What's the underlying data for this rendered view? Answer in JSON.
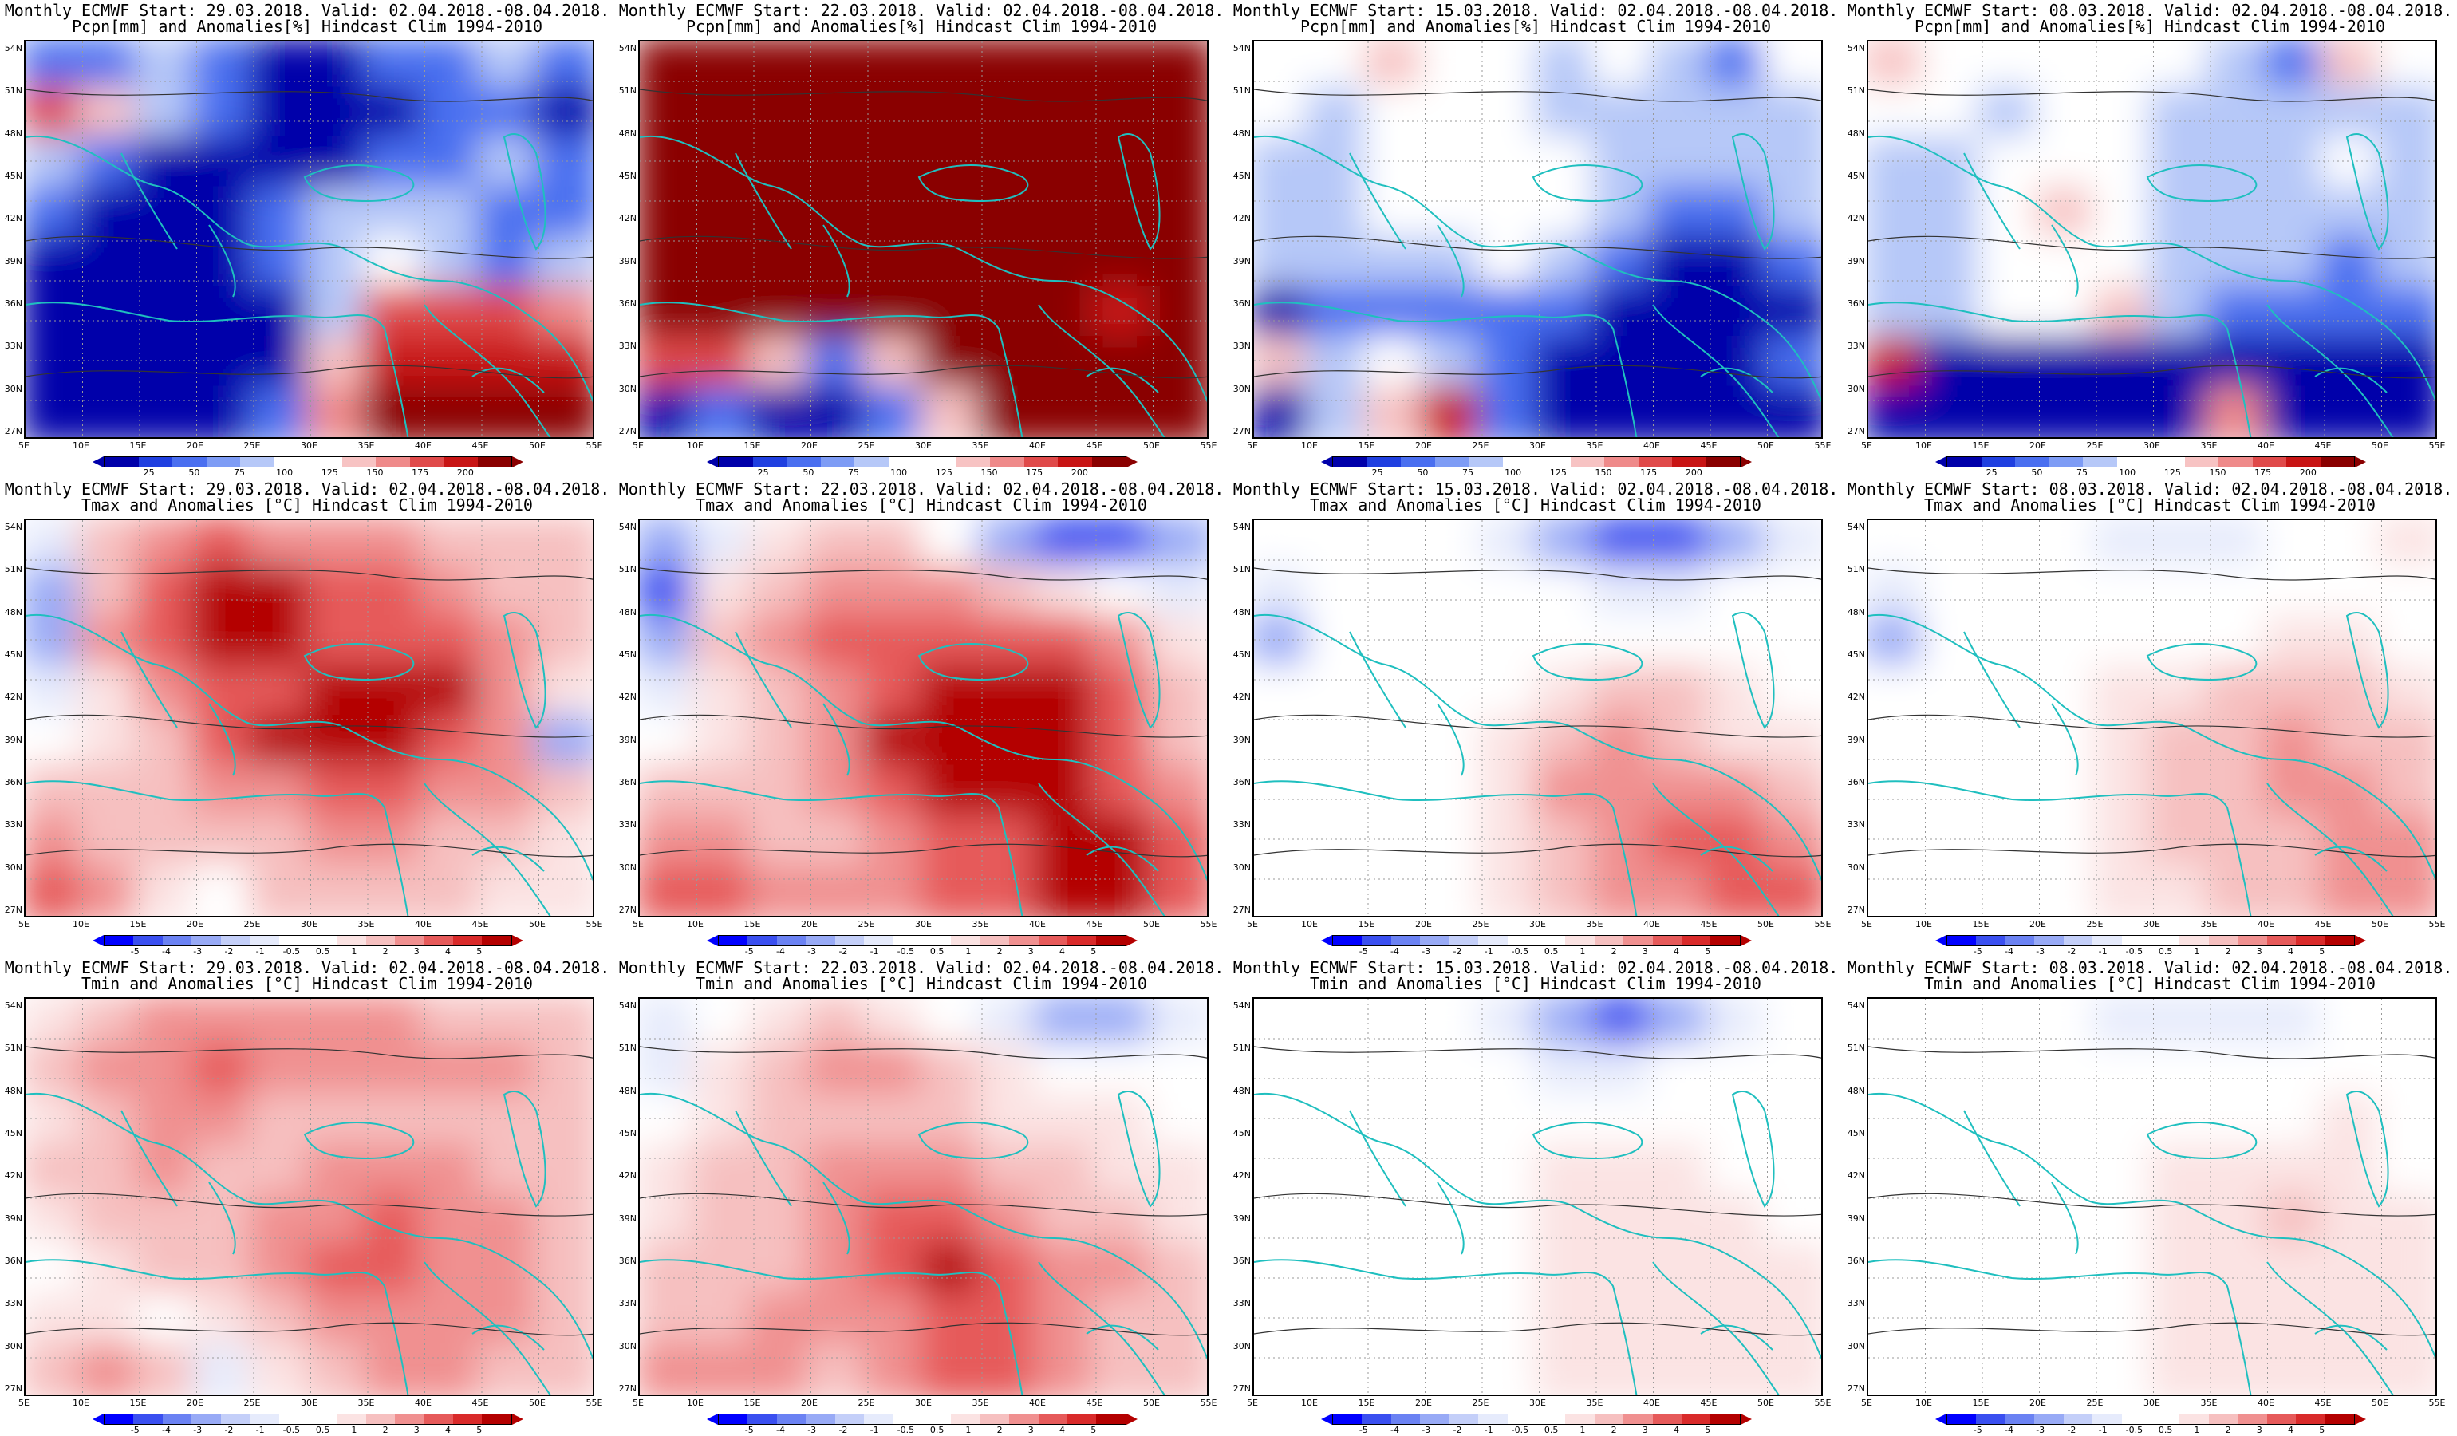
{
  "colors": {
    "precip_scale": [
      "#0000aa",
      "#1f3fe0",
      "#4a6ff0",
      "#7e9cf5",
      "#b6c8f8",
      "#ffffff",
      "#ffffff",
      "#f7c3c3",
      "#ef8a8a",
      "#e04a4a",
      "#c81414",
      "#8a0000"
    ],
    "temp_scale": [
      "#0000ff",
      "#3a4ff0",
      "#6b82f3",
      "#98aaf6",
      "#c4cff9",
      "#e6ebfc",
      "#ffffff",
      "#ffffff",
      "#fbe3e3",
      "#f6c0c0",
      "#f09090",
      "#e65a5a",
      "#d92a2a",
      "#b40000"
    ],
    "coast": "#1fbfbf",
    "contour": "#333333"
  },
  "rows": [
    {
      "variable_line": "Pcpn[mm] and Anomalies[%] Hindcast Clim 1994-2010",
      "colorbar_labels": [
        "25",
        "50",
        "75",
        "100",
        "125",
        "150",
        "175",
        "200"
      ],
      "scale": "precip"
    },
    {
      "variable_line": "Tmax and Anomalies [°C] Hindcast Clim 1994-2010",
      "colorbar_labels": [
        "-5",
        "-4",
        "-3",
        "-2",
        "-1",
        "-0.5",
        "0.5",
        "1",
        "2",
        "3",
        "4",
        "5"
      ],
      "scale": "temp"
    },
    {
      "variable_line": "Tmin and Anomalies [°C] Hindcast Clim 1994-2010",
      "colorbar_labels": [
        "-5",
        "-4",
        "-3",
        "-2",
        "-1",
        "-0.5",
        "0.5",
        "1",
        "2",
        "3",
        "4",
        "5"
      ],
      "scale": "temp"
    }
  ],
  "columns": [
    {
      "header": "Monthly ECMWF Start: 29.03.2018. Valid: 02.04.2018.-08.04.2018."
    },
    {
      "header": "Monthly ECMWF Start: 22.03.2018. Valid: 02.04.2018.-08.04.2018."
    },
    {
      "header": "Monthly ECMWF Start: 15.03.2018. Valid: 02.04.2018.-08.04.2018."
    },
    {
      "header": "Monthly ECMWF Start: 08.03.2018. Valid: 02.04.2018.-08.04.2018."
    }
  ],
  "lat_labels": [
    "54N",
    "51N",
    "48N",
    "45N",
    "42N",
    "39N",
    "36N",
    "33N",
    "30N",
    "27N"
  ],
  "lon_labels": [
    "5E",
    "10E",
    "15E",
    "20E",
    "25E",
    "30E",
    "35E",
    "40E",
    "45E",
    "50E",
    "55E"
  ],
  "panels": [
    {
      "row": 0,
      "col": 0,
      "pattern": [
        [
          -2,
          -2,
          -1,
          -2,
          -3,
          -3,
          -2,
          -2,
          -1,
          -2
        ],
        [
          3,
          1,
          -1,
          -2,
          -3,
          -3,
          -3,
          -2,
          -2,
          -3
        ],
        [
          -1,
          -2,
          -3,
          -3,
          -3,
          -3,
          -2,
          -2,
          -1,
          -2
        ],
        [
          -2,
          -3,
          -3,
          -3,
          -2,
          -1,
          -1,
          -1,
          -2,
          -2
        ],
        [
          -3,
          -3,
          -3,
          -3,
          -2,
          -1,
          0,
          -1,
          -2,
          -1
        ],
        [
          -3,
          -3,
          -3,
          -3,
          -3,
          -1,
          4,
          4,
          4,
          2
        ],
        [
          -3,
          -3,
          -3,
          -3,
          -3,
          1,
          5,
          5,
          5,
          5
        ],
        [
          -3,
          -3,
          -3,
          -3,
          -2,
          2,
          6,
          6,
          6,
          6
        ]
      ]
    },
    {
      "row": 0,
      "col": 1,
      "pattern": [
        [
          6,
          6,
          6,
          6,
          6,
          6,
          6,
          6,
          6,
          6
        ],
        [
          6,
          6,
          6,
          6,
          6,
          6,
          6,
          6,
          6,
          6
        ],
        [
          6,
          6,
          6,
          6,
          6,
          6,
          6,
          6,
          6,
          6
        ],
        [
          6,
          6,
          6,
          6,
          6,
          6,
          6,
          6,
          6,
          6
        ],
        [
          6,
          6,
          6,
          6,
          6,
          6,
          6,
          6,
          6,
          6
        ],
        [
          6,
          6,
          6,
          6,
          6,
          6,
          6,
          6,
          5,
          6
        ],
        [
          3,
          4,
          1,
          -2,
          1,
          6,
          6,
          6,
          6,
          6
        ],
        [
          -3,
          -2,
          -3,
          -3,
          -2,
          1,
          6,
          6,
          6,
          6
        ]
      ]
    },
    {
      "row": 0,
      "col": 2,
      "pattern": [
        [
          0,
          0,
          1,
          0,
          0,
          -1,
          0,
          -1,
          -2,
          0
        ],
        [
          0,
          -1,
          0,
          0,
          0,
          -1,
          -1,
          -1,
          -1,
          -1
        ],
        [
          -1,
          -1,
          0,
          0,
          0,
          0,
          -1,
          -1,
          -1,
          -1
        ],
        [
          -1,
          -1,
          0,
          0,
          0,
          0,
          -1,
          -2,
          -2,
          -1
        ],
        [
          -1,
          -1,
          -1,
          -1,
          0,
          -1,
          -2,
          -3,
          -3,
          -2
        ],
        [
          -3,
          -2,
          -2,
          -2,
          -2,
          -2,
          -3,
          -3,
          -3,
          -3
        ],
        [
          1,
          -1,
          0,
          -1,
          -2,
          -3,
          -3,
          -3,
          -3,
          -2
        ],
        [
          -3,
          -1,
          1,
          5,
          -2,
          -3,
          -3,
          -3,
          -3,
          -3
        ]
      ]
    },
    {
      "row": 0,
      "col": 3,
      "pattern": [
        [
          1,
          0,
          0,
          0,
          0,
          0,
          -1,
          -2,
          1,
          0
        ],
        [
          0,
          0,
          -1,
          0,
          0,
          -1,
          -1,
          -1,
          -1,
          -1
        ],
        [
          -1,
          -1,
          0,
          0,
          0,
          -1,
          -1,
          -1,
          0,
          -1
        ],
        [
          -1,
          -1,
          0,
          1,
          0,
          -1,
          -1,
          -1,
          -1,
          -1
        ],
        [
          -1,
          -1,
          0,
          0,
          0,
          -1,
          -1,
          -1,
          -2,
          -1
        ],
        [
          -1,
          -1,
          0,
          0,
          1,
          -1,
          -2,
          -2,
          -2,
          -2
        ],
        [
          5,
          -3,
          -3,
          -3,
          -3,
          -3,
          -3,
          -3,
          -3,
          -3
        ],
        [
          -3,
          -3,
          -3,
          -3,
          -3,
          -3,
          2,
          -3,
          -3,
          -3
        ]
      ]
    },
    {
      "row": 1,
      "col": 0,
      "pattern": [
        [
          -1,
          2,
          3,
          4,
          3,
          3,
          3,
          2,
          2,
          2
        ],
        [
          -2,
          2,
          4,
          5,
          5,
          4,
          4,
          3,
          2,
          2
        ],
        [
          -2,
          3,
          4,
          5,
          5,
          4,
          4,
          4,
          3,
          2
        ],
        [
          -1,
          1,
          3,
          4,
          4,
          5,
          5,
          5,
          3,
          1
        ],
        [
          0,
          1,
          2,
          4,
          5,
          5,
          5,
          4,
          3,
          -2
        ],
        [
          2,
          2,
          2,
          3,
          3,
          4,
          4,
          3,
          3,
          2
        ],
        [
          3,
          2,
          2,
          2,
          2,
          3,
          3,
          2,
          2,
          1
        ],
        [
          4,
          3,
          1,
          0,
          2,
          2,
          2,
          2,
          1,
          1
        ]
      ]
    },
    {
      "row": 1,
      "col": 1,
      "pattern": [
        [
          -2,
          -1,
          1,
          2,
          2,
          0,
          -2,
          -3,
          -3,
          -2
        ],
        [
          -3,
          1,
          2,
          3,
          3,
          3,
          2,
          1,
          0,
          -1
        ],
        [
          -2,
          2,
          3,
          4,
          4,
          4,
          4,
          4,
          3,
          1
        ],
        [
          -1,
          1,
          2,
          3,
          4,
          5,
          5,
          5,
          4,
          2
        ],
        [
          0,
          1,
          2,
          3,
          5,
          5,
          5,
          5,
          4,
          2
        ],
        [
          2,
          2,
          2,
          3,
          4,
          5,
          5,
          5,
          4,
          3
        ],
        [
          3,
          3,
          2,
          2,
          3,
          4,
          4,
          5,
          5,
          4
        ],
        [
          4,
          4,
          3,
          3,
          3,
          4,
          4,
          5,
          5,
          4
        ]
      ]
    },
    {
      "row": 1,
      "col": 2,
      "pattern": [
        [
          0,
          0,
          0,
          0,
          -1,
          -2,
          -3,
          -3,
          -2,
          -1
        ],
        [
          -1,
          0,
          0,
          0,
          0,
          0,
          -1,
          -1,
          0,
          0
        ],
        [
          -2,
          0,
          0,
          0,
          0,
          0,
          0,
          0,
          0,
          0
        ],
        [
          0,
          0,
          0,
          0,
          0,
          1,
          2,
          2,
          1,
          0
        ],
        [
          0,
          0,
          0,
          0,
          1,
          2,
          3,
          2,
          1,
          1
        ],
        [
          0,
          0,
          0,
          0,
          1,
          3,
          3,
          3,
          3,
          2
        ],
        [
          0,
          0,
          0,
          0,
          1,
          2,
          3,
          4,
          4,
          3
        ],
        [
          0,
          0,
          0,
          0,
          1,
          2,
          3,
          3,
          4,
          4
        ]
      ]
    },
    {
      "row": 1,
      "col": 3,
      "pattern": [
        [
          0,
          0,
          0,
          0,
          -1,
          -1,
          -1,
          0,
          0,
          1
        ],
        [
          -1,
          0,
          0,
          0,
          0,
          0,
          0,
          0,
          0,
          0
        ],
        [
          -2,
          0,
          0,
          0,
          0,
          0,
          0,
          1,
          1,
          0
        ],
        [
          0,
          0,
          0,
          0,
          1,
          1,
          2,
          2,
          2,
          1
        ],
        [
          0,
          0,
          0,
          0,
          1,
          2,
          2,
          3,
          2,
          2
        ],
        [
          0,
          0,
          0,
          0,
          1,
          2,
          2,
          3,
          3,
          2
        ],
        [
          0,
          0,
          0,
          0,
          1,
          2,
          2,
          2,
          3,
          3
        ],
        [
          0,
          0,
          0,
          0,
          1,
          1,
          2,
          2,
          3,
          3
        ]
      ]
    },
    {
      "row": 2,
      "col": 0,
      "pattern": [
        [
          1,
          2,
          3,
          3,
          3,
          3,
          3,
          2,
          2,
          2
        ],
        [
          2,
          3,
          3,
          4,
          3,
          3,
          3,
          3,
          3,
          2
        ],
        [
          1,
          2,
          3,
          3,
          2,
          2,
          2,
          2,
          2,
          2
        ],
        [
          2,
          2,
          3,
          2,
          2,
          3,
          3,
          3,
          2,
          2
        ],
        [
          1,
          2,
          2,
          2,
          3,
          3,
          4,
          3,
          3,
          2
        ],
        [
          0,
          1,
          2,
          2,
          3,
          4,
          4,
          3,
          3,
          2
        ],
        [
          1,
          1,
          0,
          1,
          2,
          3,
          3,
          3,
          3,
          2
        ],
        [
          2,
          3,
          2,
          -1,
          1,
          2,
          3,
          3,
          2,
          2
        ]
      ]
    },
    {
      "row": 2,
      "col": 1,
      "pattern": [
        [
          -1,
          0,
          1,
          2,
          1,
          0,
          -1,
          -2,
          -2,
          -1
        ],
        [
          -1,
          1,
          2,
          3,
          3,
          2,
          1,
          0,
          0,
          0
        ],
        [
          0,
          1,
          2,
          2,
          2,
          2,
          1,
          1,
          1,
          0
        ],
        [
          1,
          2,
          2,
          3,
          3,
          3,
          2,
          2,
          1,
          1
        ],
        [
          1,
          2,
          2,
          3,
          4,
          4,
          3,
          2,
          2,
          1
        ],
        [
          2,
          2,
          2,
          3,
          4,
          5,
          4,
          3,
          3,
          2
        ],
        [
          2,
          2,
          3,
          3,
          3,
          4,
          4,
          3,
          2,
          2
        ],
        [
          3,
          3,
          3,
          2,
          3,
          4,
          4,
          3,
          2,
          2
        ]
      ]
    },
    {
      "row": 2,
      "col": 2,
      "pattern": [
        [
          0,
          0,
          0,
          0,
          -1,
          -2,
          -3,
          -2,
          -1,
          0
        ],
        [
          0,
          0,
          0,
          0,
          0,
          -1,
          -1,
          0,
          0,
          0
        ],
        [
          0,
          0,
          0,
          0,
          0,
          0,
          0,
          0,
          0,
          0
        ],
        [
          0,
          0,
          0,
          0,
          0,
          1,
          1,
          1,
          0,
          0
        ],
        [
          0,
          0,
          0,
          0,
          0,
          1,
          1,
          1,
          1,
          0
        ],
        [
          0,
          0,
          0,
          0,
          0,
          1,
          1,
          1,
          1,
          1
        ],
        [
          0,
          0,
          0,
          0,
          0,
          1,
          1,
          1,
          1,
          1
        ],
        [
          0,
          0,
          0,
          0,
          0,
          1,
          1,
          1,
          1,
          1
        ]
      ]
    },
    {
      "row": 2,
      "col": 3,
      "pattern": [
        [
          0,
          0,
          0,
          0,
          -1,
          -1,
          -1,
          -1,
          0,
          0
        ],
        [
          0,
          0,
          0,
          0,
          0,
          0,
          0,
          0,
          0,
          0
        ],
        [
          0,
          0,
          0,
          0,
          0,
          0,
          0,
          0,
          1,
          0
        ],
        [
          0,
          0,
          0,
          0,
          0,
          1,
          1,
          1,
          1,
          0
        ],
        [
          0,
          0,
          0,
          0,
          0,
          1,
          1,
          2,
          1,
          1
        ],
        [
          0,
          0,
          0,
          0,
          0,
          1,
          1,
          1,
          1,
          1
        ],
        [
          0,
          0,
          0,
          0,
          0,
          1,
          1,
          1,
          1,
          1
        ],
        [
          0,
          0,
          0,
          0,
          0,
          1,
          1,
          1,
          1,
          1
        ]
      ]
    }
  ]
}
